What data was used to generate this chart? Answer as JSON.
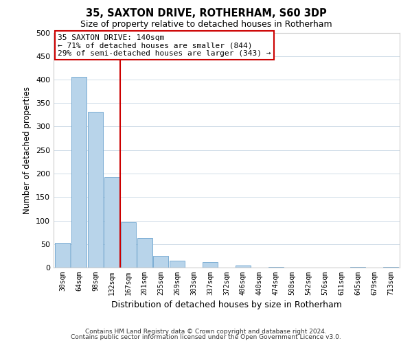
{
  "title": "35, SAXTON DRIVE, ROTHERHAM, S60 3DP",
  "subtitle": "Size of property relative to detached houses in Rotherham",
  "xlabel": "Distribution of detached houses by size in Rotherham",
  "ylabel": "Number of detached properties",
  "bar_labels": [
    "30sqm",
    "64sqm",
    "98sqm",
    "132sqm",
    "167sqm",
    "201sqm",
    "235sqm",
    "269sqm",
    "303sqm",
    "337sqm",
    "372sqm",
    "406sqm",
    "440sqm",
    "474sqm",
    "508sqm",
    "542sqm",
    "576sqm",
    "611sqm",
    "645sqm",
    "679sqm",
    "713sqm"
  ],
  "bar_values": [
    53,
    406,
    332,
    193,
    97,
    63,
    25,
    15,
    0,
    11,
    0,
    5,
    0,
    2,
    0,
    0,
    0,
    0,
    2,
    0,
    2
  ],
  "bar_color": "#b8d4ea",
  "bar_edge_color": "#7aadd4",
  "ylim": [
    0,
    500
  ],
  "yticks": [
    0,
    50,
    100,
    150,
    200,
    250,
    300,
    350,
    400,
    450,
    500
  ],
  "property_line_x": 3.5,
  "property_line_color": "#cc0000",
  "annotation_title": "35 SAXTON DRIVE: 140sqm",
  "annotation_line1": "← 71% of detached houses are smaller (844)",
  "annotation_line2": "29% of semi-detached houses are larger (343) →",
  "annotation_box_color": "#ffffff",
  "annotation_box_edge": "#cc0000",
  "footnote1": "Contains HM Land Registry data © Crown copyright and database right 2024.",
  "footnote2": "Contains public sector information licensed under the Open Government Licence v3.0.",
  "background_color": "#ffffff",
  "grid_color": "#d0dce8"
}
